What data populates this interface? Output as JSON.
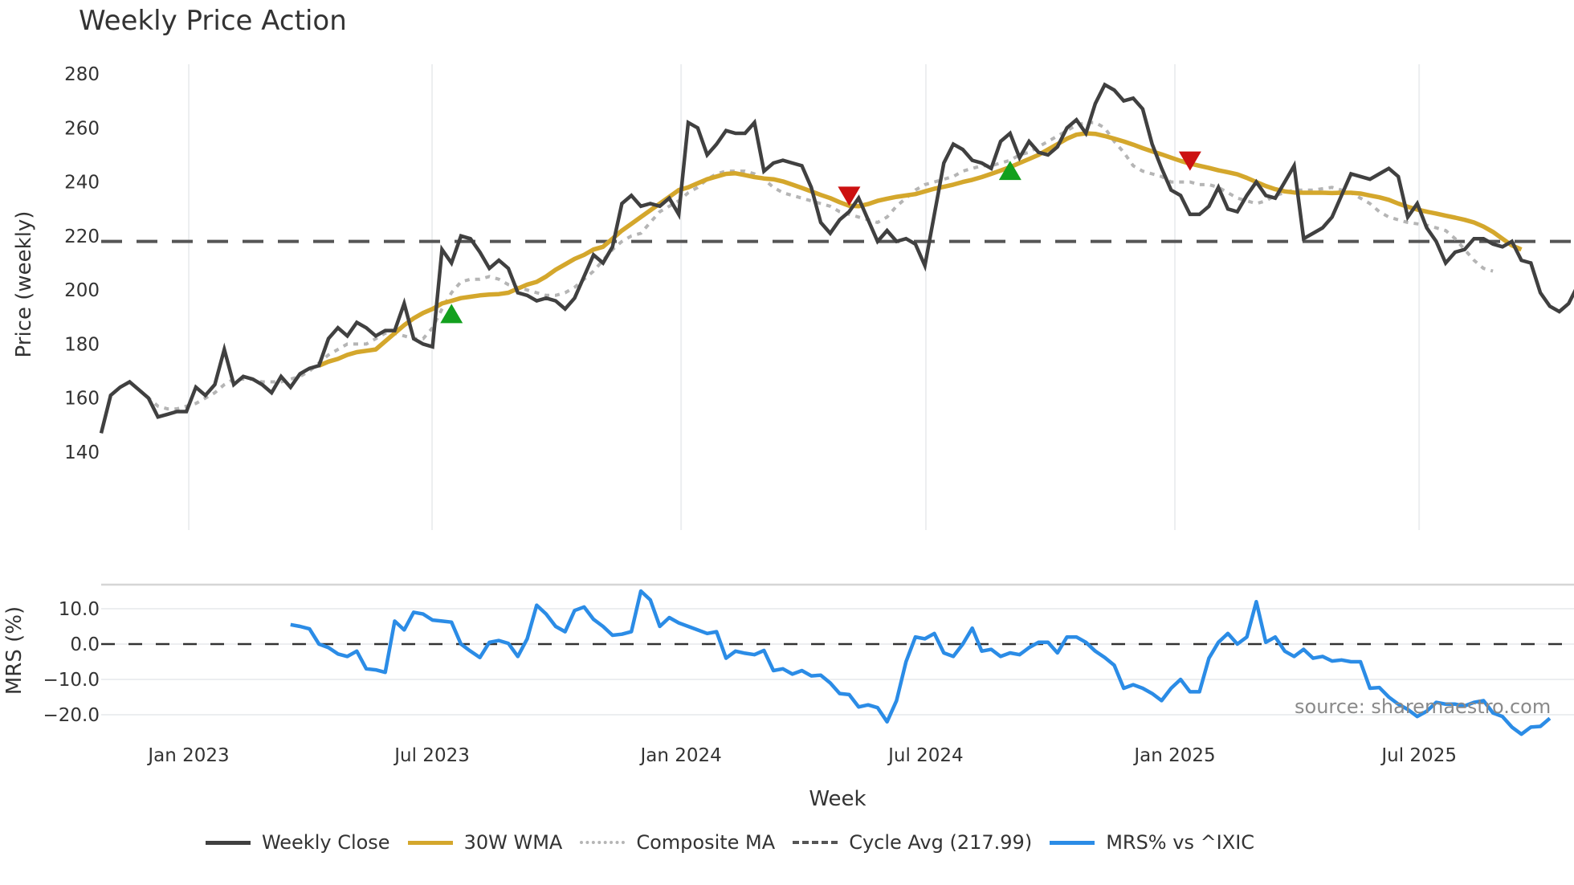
{
  "title": "Weekly Price Action",
  "watermark": "source: sharemaestro.com",
  "legend": [
    {
      "label": "Weekly Close",
      "color": "#404040",
      "style": "solid"
    },
    {
      "label": "30W WMA",
      "color": "#d4a72c",
      "style": "solid"
    },
    {
      "label": "Composite MA",
      "color": "#b0b0b0",
      "style": "dotted"
    },
    {
      "label": "Cycle Avg (217.99)",
      "color": "#555555",
      "style": "dashed"
    },
    {
      "label": "MRS% vs ^IXIC",
      "color": "#2b8ce6",
      "style": "solid"
    }
  ],
  "chart_data": [
    {
      "type": "line",
      "title": "Weekly Price Action",
      "xlabel": "Week",
      "ylabel": "Price (weekly)",
      "ylim": [
        140,
        282
      ],
      "yticks": [
        140,
        160,
        180,
        200,
        220,
        240,
        260,
        280
      ],
      "xticks": [
        "Jan 2023",
        "Jul 2023",
        "Jan 2024",
        "Jul 2024",
        "Jan 2025",
        "Jul 2025"
      ],
      "grid": "vertical",
      "cycle_avg": 217.99,
      "series": [
        {
          "name": "Weekly Close",
          "color": "#404040",
          "start_week": 0,
          "values": [
            147,
            161,
            164,
            166,
            163,
            160,
            153,
            154,
            155,
            155,
            164,
            161,
            165,
            178,
            165,
            168,
            167,
            165,
            162,
            168,
            164,
            169,
            171,
            172,
            182,
            186,
            183,
            188,
            186,
            183,
            185,
            185,
            195,
            182,
            180,
            179,
            215,
            210,
            220,
            219,
            214,
            208,
            211,
            208,
            199,
            198,
            196,
            197,
            196,
            193,
            197,
            205,
            213,
            210,
            216,
            232,
            235,
            231,
            232,
            231,
            234,
            228,
            262,
            260,
            250,
            254,
            259,
            258,
            258,
            262,
            244,
            247,
            248,
            247,
            246,
            238,
            225,
            221,
            226,
            229,
            234,
            226,
            218,
            222,
            218,
            219,
            217,
            209,
            228,
            247,
            254,
            252,
            248,
            247,
            245,
            255,
            258,
            249,
            255,
            251,
            250,
            253,
            260,
            263,
            258,
            269,
            276,
            274,
            270,
            271,
            267,
            254,
            245,
            237,
            235,
            228,
            228,
            231,
            238,
            230,
            229,
            235,
            240,
            235,
            234,
            240,
            246,
            219,
            221,
            223,
            227,
            235,
            243,
            242,
            241,
            243,
            245,
            242,
            227,
            232,
            223,
            218,
            210,
            214,
            215,
            219,
            219,
            217,
            216,
            218,
            211,
            210,
            199,
            194,
            192,
            195,
            202
          ]
        },
        {
          "name": "30W WMA",
          "color": "#d4a72c",
          "start_week": 23,
          "values": [
            172,
            173.5,
            174.5,
            176,
            177,
            177.5,
            178,
            181,
            184,
            187,
            189.5,
            191.5,
            193,
            195,
            196,
            197,
            197.5,
            198,
            198.3,
            198.5,
            199,
            200.5,
            202,
            203,
            205,
            207.5,
            209.5,
            211.5,
            213,
            215,
            216,
            219,
            222,
            224.5,
            227,
            229.5,
            232,
            234.5,
            237,
            238,
            239.5,
            241,
            242,
            243,
            243.2,
            242.5,
            241.8,
            241.3,
            241,
            240.2,
            239,
            237.8,
            236.5,
            235.2,
            234,
            232.5,
            231.2,
            231,
            231.8,
            233,
            233.8,
            234.5,
            235,
            235.5,
            236.5,
            237.5,
            238.2,
            239,
            240,
            240.8,
            241.8,
            243,
            244.2,
            245.5,
            247,
            248.5,
            250,
            252,
            254,
            256,
            257.5,
            258,
            257.8,
            257,
            256,
            255,
            253.8,
            252.5,
            251.3,
            250.2,
            249,
            247.8,
            246.8,
            246,
            245.2,
            244.3,
            243.6,
            242.8,
            241.5,
            240,
            238.5,
            237.3,
            236.5,
            236.1,
            236,
            236,
            236,
            235.9,
            236,
            236,
            235.7,
            235,
            234.3,
            233.4,
            232,
            230.8,
            229.8,
            229,
            228.3,
            227.5,
            226.8,
            226,
            225,
            223.5,
            221.5,
            219,
            216.5,
            215
          ]
        },
        {
          "name": "Composite MA",
          "color": "#b0b0b0",
          "style": "dotted",
          "start_week": 4,
          "values": [
            163,
            160,
            157,
            156,
            156,
            157,
            158,
            160,
            162,
            165,
            167,
            167,
            167,
            166,
            166,
            166,
            167,
            168,
            170,
            173,
            176,
            178,
            180,
            180,
            180,
            182,
            184,
            184,
            183,
            182,
            182,
            186,
            193,
            199,
            203,
            204,
            204,
            205,
            204,
            202,
            201,
            200,
            199,
            198,
            198,
            199,
            201,
            204,
            207,
            211,
            215,
            218,
            220,
            221,
            225,
            229,
            231,
            233,
            236,
            238,
            241,
            243,
            244,
            244,
            244,
            243,
            241,
            238,
            236,
            235,
            234,
            233,
            232,
            231,
            229,
            228,
            227,
            226,
            225,
            227,
            231,
            234,
            237,
            239,
            240,
            241,
            242,
            244,
            245,
            246,
            246,
            247,
            248,
            250,
            251,
            253,
            255,
            257,
            259,
            261,
            262,
            262,
            260,
            255,
            251,
            246,
            244,
            243,
            242,
            240,
            240,
            240,
            239,
            239,
            238,
            236,
            234,
            233,
            232,
            233,
            235,
            236,
            237,
            237,
            237,
            237.5,
            238,
            237,
            236,
            234,
            232,
            229,
            227,
            226,
            225,
            224.5,
            224,
            223,
            222,
            219,
            215,
            211,
            208,
            207
          ]
        },
        {
          "name": "Cycle Avg",
          "color": "#555555",
          "style": "dashed",
          "value": 217.99
        }
      ],
      "markers": [
        {
          "type": "buy",
          "shape": "triangle-up",
          "color": "#13a01e",
          "week": 37,
          "price": 191
        },
        {
          "type": "sell",
          "shape": "triangle-down",
          "color": "#cc1111",
          "week": 79,
          "price": 235
        },
        {
          "type": "buy",
          "shape": "triangle-up",
          "color": "#13a01e",
          "week": 96,
          "price": 244
        },
        {
          "type": "sell",
          "shape": "triangle-down",
          "color": "#cc1111",
          "week": 115,
          "price": 248
        }
      ]
    },
    {
      "type": "line",
      "xlabel": "Week",
      "ylabel": "MRS (%)",
      "ylim": [
        -26,
        17
      ],
      "yticks": [
        -20.0,
        -10.0,
        0.0,
        10.0
      ],
      "ytick_labels": [
        "−20.0",
        "−10.0",
        "0.0",
        "10.0"
      ],
      "zero_line": "dashed",
      "series": [
        {
          "name": "MRS% vs ^IXIC",
          "color": "#2b8ce6",
          "start_week": 20,
          "values": [
            5.5,
            5,
            4.3,
            0,
            -1,
            -2.8,
            -3.5,
            -2,
            -7,
            -7.3,
            -8,
            6.5,
            4,
            9,
            8.5,
            6.8,
            6.5,
            6.2,
            0,
            -2,
            -3.8,
            0.5,
            1,
            0.2,
            -3.5,
            1.5,
            11,
            8.5,
            5,
            3.5,
            9.5,
            10.5,
            7,
            5,
            2.5,
            2.8,
            3.5,
            15,
            12.5,
            5,
            7.5,
            6,
            5,
            4,
            3,
            3.5,
            -4,
            -2,
            -2.6,
            -3,
            -1.8,
            -7.5,
            -7,
            -8.5,
            -7.5,
            -9,
            -8.8,
            -11,
            -14,
            -14.3,
            -17.8,
            -17.2,
            -18,
            -22,
            -16,
            -5,
            2,
            1.5,
            3,
            -2.5,
            -3.5,
            0,
            4.5,
            -2,
            -1.5,
            -3.5,
            -2.5,
            -3,
            -1,
            0.5,
            0.5,
            -2.5,
            2,
            2,
            0.5,
            -2,
            -3.8,
            -6,
            -12.5,
            -11.5,
            -12.5,
            -14,
            -16,
            -12.5,
            -10,
            -13.5,
            -13.5,
            -4,
            0.5,
            3,
            0,
            2,
            12,
            0.5,
            2,
            -2,
            -3.5,
            -1.5,
            -4,
            -3.5,
            -4.8,
            -4.5,
            -5,
            -5,
            -12.5,
            -12.3,
            -15,
            -17,
            -18.5,
            -20.5,
            -19,
            -16.5,
            -17,
            -17,
            -17.5,
            -16.5,
            -16,
            -19.5,
            -20.5,
            -23.5,
            -25.5,
            -23.5,
            -23.3,
            -21
          ]
        }
      ]
    }
  ]
}
